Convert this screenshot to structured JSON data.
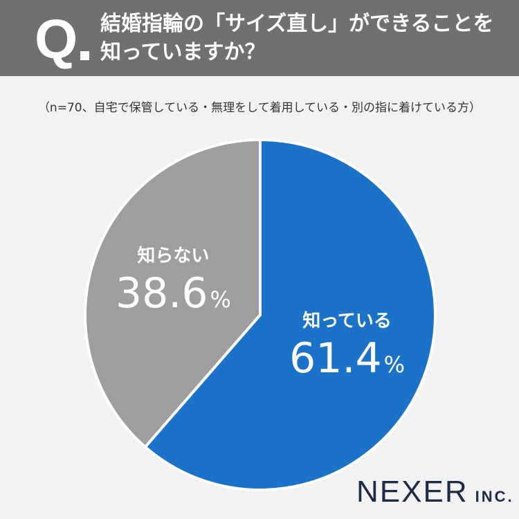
{
  "header": {
    "q_mark": "Q",
    "question": "結婚指輪の「サイズ直し」ができることを知っていますか？"
  },
  "note": "（n=70、自宅で保管している・無理をして着用している・別の指に着けている方）",
  "chart_data": {
    "type": "pie",
    "categories": [
      "知っている",
      "知らない"
    ],
    "values": [
      61.4,
      38.6
    ],
    "value_labels": [
      "61.4",
      "38.6"
    ],
    "unit": "%",
    "colors": [
      "#1a73c8",
      "#9e9e9e"
    ],
    "start": "12 o'clock",
    "direction": "clockwise",
    "legend": "none (labels inside slices)"
  },
  "brand": {
    "name": "NEXER",
    "suffix": "INC."
  }
}
